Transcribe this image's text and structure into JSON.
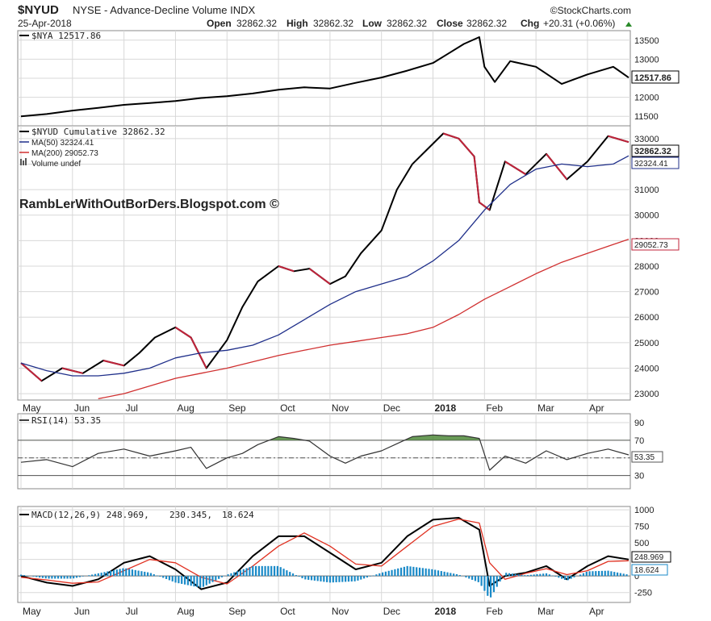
{
  "header": {
    "symbol": "$NYUD",
    "description": "NYSE - Advance-Decline Volume INDX",
    "date": "25-Apr-2018",
    "open_label": "Open",
    "open": "32862.32",
    "high_label": "High",
    "high": "32862.32",
    "low_label": "Low",
    "low": "32862.32",
    "close_label": "Close",
    "close": "32862.32",
    "chg_label": "Chg",
    "chg": "+20.31 (+0.06%)",
    "brand": "©StockCharts.com"
  },
  "watermark": "RambLerWithOutBorDers.Blogspot.com ©",
  "x_labels": [
    "May",
    "Jun",
    "Jul",
    "Aug",
    "Sep",
    "Oct",
    "Nov",
    "Dec",
    "2018",
    "Feb",
    "Mar",
    "Apr"
  ],
  "panels": {
    "nya": {
      "legend": "$NYA 12517.86",
      "last_label": "12517.86",
      "ticks": [
        11500,
        12000,
        12500,
        13000,
        13500
      ],
      "ylim": [
        11250,
        13750
      ]
    },
    "nyud": {
      "legend_main": "$NYUD Cumulative 32862.32",
      "legend_ma50": "MA(50) 32324.41",
      "legend_ma200": "MA(200) 29052.73",
      "legend_volume": "Volume undef",
      "last_label": "32862.32",
      "ma50_label": "32324.41",
      "ma200_label": "29052.73",
      "ticks": [
        23000,
        24000,
        25000,
        26000,
        27000,
        28000,
        29000,
        30000,
        31000,
        32000,
        33000
      ],
      "ylim": [
        22750,
        33500
      ]
    },
    "rsi": {
      "legend": "RSI(14) 53.35",
      "last_label": "53.35",
      "ticks": [
        30,
        50,
        70,
        90
      ],
      "ylim": [
        15,
        100
      ]
    },
    "macd": {
      "legend_a": "MACD(12,26,9) 248.969,",
      "legend_b": "230.345,",
      "legend_c": "18.624",
      "last_macd_label": "248.969",
      "last_hist_label": "18.624",
      "ticks": [
        -250,
        0,
        250,
        500,
        750,
        1000
      ],
      "tick_labels": [
        "-250",
        "0",
        "250",
        "500",
        "750",
        "1000"
      ],
      "ylim": [
        -400,
        1050
      ]
    }
  },
  "colors": {
    "price": "#000000",
    "down_segment": "#c0233a",
    "ma50": "#1f2f8a",
    "ma200": "#d03030",
    "rsi_fill": "#4f8a3a",
    "macd_signal": "#e03020",
    "hist": "#1a8ac8",
    "grid": "#d8d8d8"
  },
  "chart_data": [
    {
      "type": "line",
      "title": "$NYA 12517.86",
      "categories": [
        "May",
        "Jun",
        "Jul",
        "Aug",
        "Sep",
        "Oct",
        "Nov",
        "Dec",
        "2018",
        "Feb",
        "Mar",
        "Apr"
      ],
      "series": [
        {
          "name": "$NYA",
          "x": [
            0,
            0.5,
            1,
            1.5,
            2,
            2.5,
            3,
            3.5,
            4,
            4.5,
            5,
            5.5,
            6,
            6.5,
            7,
            7.5,
            8,
            8.3,
            8.6,
            8.9,
            9,
            9.2,
            9.5,
            10,
            10.5,
            11,
            11.5,
            11.8
          ],
          "values": [
            11500,
            11560,
            11650,
            11720,
            11800,
            11850,
            11900,
            11980,
            12030,
            12100,
            12200,
            12260,
            12230,
            12380,
            12520,
            12700,
            12900,
            13150,
            13400,
            13580,
            12800,
            12400,
            12950,
            12800,
            12350,
            12600,
            12800,
            12518
          ]
        }
      ],
      "ylim": [
        11250,
        13750
      ]
    },
    {
      "type": "line",
      "title": "$NYUD Cumulative 32862.32",
      "categories": [
        "May",
        "Jun",
        "Jul",
        "Aug",
        "Sep",
        "Oct",
        "Nov",
        "Dec",
        "2018",
        "Feb",
        "Mar",
        "Apr"
      ],
      "series": [
        {
          "name": "$NYUD Cumulative",
          "x": [
            0,
            0.4,
            0.8,
            1.2,
            1.6,
            2,
            2.3,
            2.6,
            3,
            3.3,
            3.6,
            4,
            4.3,
            4.6,
            5,
            5.3,
            5.6,
            6,
            6.3,
            6.6,
            7,
            7.3,
            7.6,
            7.9,
            8.2,
            8.5,
            8.8,
            8.9,
            9.1,
            9.4,
            9.8,
            10.2,
            10.6,
            11,
            11.4,
            11.8
          ],
          "values": [
            24200,
            23500,
            24000,
            23800,
            24300,
            24100,
            24600,
            25200,
            25600,
            25200,
            24000,
            25100,
            26400,
            27400,
            28000,
            27800,
            27900,
            27300,
            27600,
            28500,
            29400,
            31000,
            32000,
            32600,
            33200,
            33000,
            32300,
            30500,
            30200,
            32100,
            31600,
            32400,
            31400,
            32100,
            33100,
            32862
          ]
        },
        {
          "name": "MA(50)",
          "x": [
            0,
            0.5,
            1,
            1.5,
            2,
            2.5,
            3,
            3.5,
            4,
            4.5,
            5,
            5.5,
            6,
            6.5,
            7,
            7.5,
            8,
            8.5,
            9,
            9.5,
            10,
            10.5,
            11,
            11.5,
            11.8
          ],
          "values": [
            24200,
            23900,
            23700,
            23700,
            23800,
            24000,
            24400,
            24600,
            24700,
            24900,
            25300,
            25900,
            26500,
            27000,
            27300,
            27600,
            28200,
            29000,
            30200,
            31200,
            31800,
            32000,
            31900,
            32000,
            32324
          ]
        },
        {
          "name": "MA(200)",
          "x": [
            1.5,
            2,
            2.5,
            3,
            3.5,
            4,
            4.5,
            5,
            5.5,
            6,
            6.5,
            7,
            7.5,
            8,
            8.5,
            9,
            9.5,
            10,
            10.5,
            11,
            11.5,
            11.8
          ],
          "values": [
            22800,
            23000,
            23300,
            23600,
            23800,
            24000,
            24250,
            24500,
            24700,
            24900,
            25050,
            25200,
            25350,
            25600,
            26100,
            26700,
            27200,
            27700,
            28150,
            28500,
            28850,
            29053
          ]
        }
      ],
      "ylim": [
        22750,
        33500
      ]
    },
    {
      "type": "line",
      "title": "RSI(14) 53.35",
      "series": [
        {
          "name": "RSI(14)",
          "x": [
            0,
            0.5,
            1,
            1.5,
            2,
            2.5,
            3,
            3.3,
            3.6,
            4,
            4.3,
            4.6,
            5,
            5.3,
            5.6,
            6,
            6.3,
            6.6,
            7,
            7.3,
            7.6,
            8,
            8.3,
            8.6,
            8.9,
            9.1,
            9.4,
            9.8,
            10.2,
            10.6,
            11,
            11.4,
            11.8
          ],
          "values": [
            45,
            48,
            40,
            55,
            60,
            52,
            58,
            62,
            38,
            50,
            55,
            65,
            74,
            72,
            69,
            52,
            44,
            52,
            58,
            66,
            74,
            76,
            75,
            75,
            72,
            36,
            52,
            44,
            58,
            48,
            55,
            60,
            53.35
          ]
        }
      ],
      "ylim": [
        15,
        100
      ]
    },
    {
      "type": "line",
      "title": "MACD(12,26,9) 248.969, 230.345, 18.624",
      "series": [
        {
          "name": "MACD",
          "x": [
            0,
            0.5,
            1,
            1.5,
            2,
            2.5,
            3,
            3.5,
            4,
            4.5,
            5,
            5.5,
            6,
            6.5,
            7,
            7.5,
            8,
            8.5,
            8.9,
            9.1,
            9.4,
            9.8,
            10.2,
            10.6,
            11,
            11.4,
            11.8
          ],
          "values": [
            0,
            -100,
            -150,
            -50,
            200,
            300,
            100,
            -200,
            -100,
            300,
            600,
            600,
            350,
            100,
            200,
            600,
            850,
            880,
            700,
            -150,
            0,
            50,
            150,
            -50,
            150,
            300,
            249
          ]
        },
        {
          "name": "Signal",
          "x": [
            0,
            0.5,
            1,
            1.5,
            2,
            2.5,
            3,
            3.5,
            4,
            4.5,
            5,
            5.5,
            6,
            6.5,
            7,
            7.5,
            8,
            8.5,
            8.9,
            9.1,
            9.4,
            9.8,
            10.2,
            10.6,
            11,
            11.4,
            11.8
          ],
          "values": [
            -20,
            -60,
            -110,
            -90,
            80,
            250,
            200,
            -20,
            -120,
            150,
            450,
            650,
            450,
            180,
            150,
            450,
            750,
            860,
            800,
            200,
            -50,
            40,
            110,
            20,
            80,
            220,
            230
          ]
        },
        {
          "name": "Histogram",
          "x": [
            0,
            0.5,
            1,
            1.5,
            2,
            2.5,
            3,
            3.5,
            4,
            4.5,
            5,
            5.5,
            6,
            6.5,
            7,
            7.5,
            8,
            8.5,
            8.9,
            9.1,
            9.4,
            9.8,
            10.2,
            10.6,
            11,
            11.4,
            11.8
          ],
          "values": [
            20,
            -40,
            -40,
            40,
            120,
            50,
            -100,
            -180,
            20,
            150,
            150,
            -50,
            -100,
            -80,
            50,
            150,
            100,
            20,
            -100,
            -350,
            50,
            10,
            40,
            -70,
            70,
            80,
            19
          ]
        }
      ],
      "ylim": [
        -400,
        1050
      ]
    }
  ]
}
